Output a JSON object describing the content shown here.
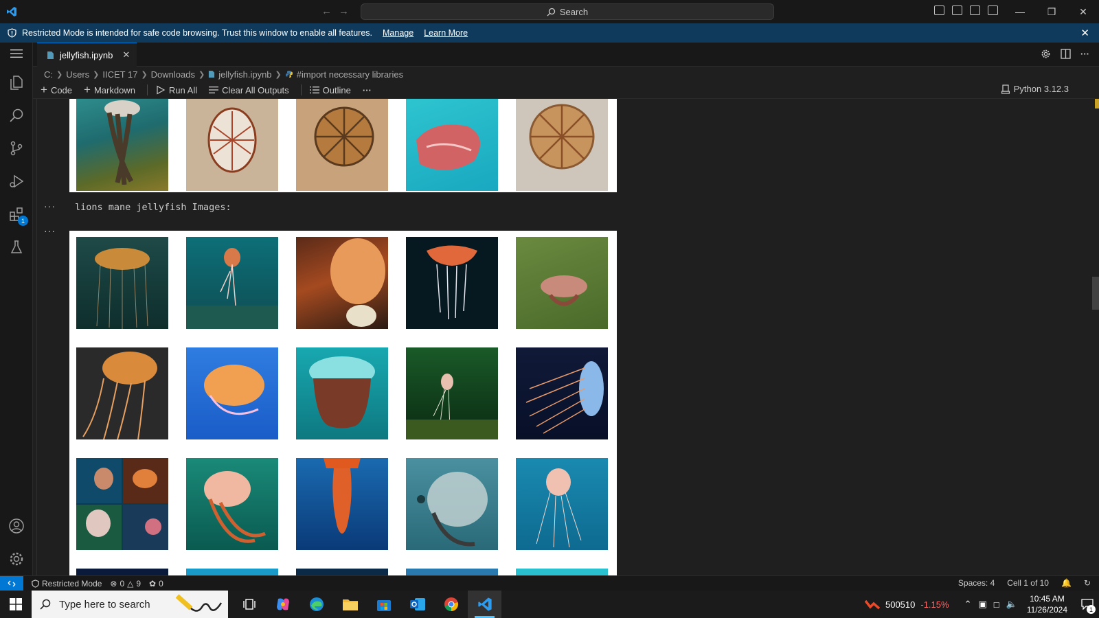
{
  "titlebar": {
    "search_placeholder": "Search"
  },
  "banner": {
    "message": "Restricted Mode is intended for safe code browsing. Trust this window to enable all features.",
    "manage_link": "Manage",
    "learn_more_link": "Learn More"
  },
  "activity_bar": {
    "extensions_badge": "1"
  },
  "tab": {
    "filename": "jellyfish.ipynb"
  },
  "breadcrumb": {
    "items": [
      "C:",
      "Users",
      "IICET 17",
      "Downloads",
      "jellyfish.ipynb",
      "#import necessary libraries"
    ]
  },
  "notebook_toolbar": {
    "code": "Code",
    "markdown": "Markdown",
    "run_all": "Run All",
    "clear_all_outputs": "Clear All Outputs",
    "outline": "Outline",
    "more": "···",
    "kernel": "Python 3.12.3"
  },
  "notebook": {
    "cell_dots": "···",
    "output_label": "lions mane jellyfish Images:"
  },
  "colors": {
    "accent": "#0078d4",
    "banner": "#0f3a5c"
  },
  "statusbar": {
    "restricted_mode": "Restricted Mode",
    "errors": "0",
    "warnings": "9",
    "ports": "0",
    "spaces": "Spaces: 4",
    "cell_position": "Cell 1 of 10"
  },
  "taskbar": {
    "search_placeholder": "Type here to search",
    "stock_value": "500510",
    "stock_change": "-1.15%",
    "time": "10:45 AM",
    "date": "11/26/2024",
    "notification_count": "1"
  }
}
